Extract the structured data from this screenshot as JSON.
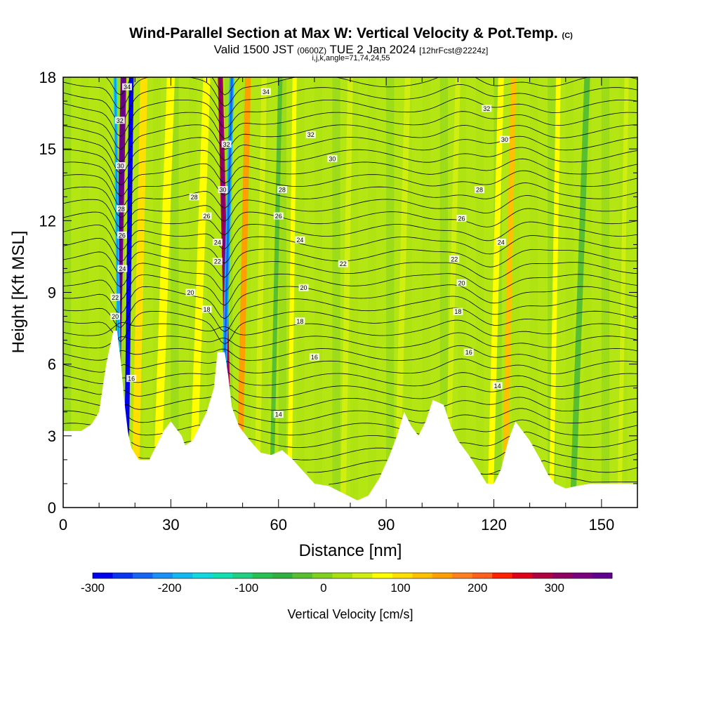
{
  "header": {
    "title_main": "Wind-Parallel Section at Max W: Vertical Velocity & Pot.Temp.",
    "title_copyright": "(C)",
    "valid_prefix": "Valid 1500 JST",
    "valid_utc": "(0600Z)",
    "valid_date": "TUE 2 Jan 2024",
    "forecast_info": "[12hrFcst@2224z]",
    "indices": "i,j,k,angle=71,74,24,55"
  },
  "chart_data": {
    "type": "heatmap",
    "description_type": "cross-section with filled contours and isentropes",
    "xlabel": "Distance [nm]",
    "ylabel": "Height [Kft MSL]",
    "xlim": [
      0,
      160
    ],
    "ylim": [
      0,
      18
    ],
    "x_ticks": [
      0,
      30,
      60,
      90,
      120,
      150
    ],
    "y_ticks": [
      0,
      3,
      6,
      9,
      12,
      15,
      18
    ],
    "colorbar": {
      "label": "Vertical Velocity [cm/s]",
      "range": [
        -300,
        375
      ],
      "step": 25,
      "tick_values": [
        -300,
        -200,
        -100,
        0,
        100,
        200,
        300
      ],
      "colors": [
        "#0000ee",
        "#0a35f0",
        "#1565f2",
        "#1a90f5",
        "#14b8f0",
        "#10d8e0",
        "#10e0b0",
        "#20d080",
        "#28c050",
        "#30b040",
        "#58c030",
        "#80d020",
        "#a8e010",
        "#d0ee10",
        "#ffff00",
        "#ffe000",
        "#ffc000",
        "#ffa000",
        "#ff8020",
        "#ff6020",
        "#ff2000",
        "#e00018",
        "#b00040",
        "#900060",
        "#7a0080",
        "#60008c"
      ]
    },
    "terrain_kft": [
      {
        "x": 0,
        "h": 3.2
      },
      {
        "x": 5,
        "h": 3.2
      },
      {
        "x": 8,
        "h": 3.5
      },
      {
        "x": 10,
        "h": 4.0
      },
      {
        "x": 12,
        "h": 6.0
      },
      {
        "x": 14,
        "h": 7.4
      },
      {
        "x": 15,
        "h": 7.4
      },
      {
        "x": 16,
        "h": 6.2
      },
      {
        "x": 17,
        "h": 4.5
      },
      {
        "x": 18,
        "h": 3.2
      },
      {
        "x": 19,
        "h": 2.5
      },
      {
        "x": 21,
        "h": 2.0
      },
      {
        "x": 24,
        "h": 2.0
      },
      {
        "x": 26,
        "h": 2.6
      },
      {
        "x": 28,
        "h": 3.2
      },
      {
        "x": 30,
        "h": 3.6
      },
      {
        "x": 33,
        "h": 3.0
      },
      {
        "x": 34,
        "h": 2.6
      },
      {
        "x": 36,
        "h": 2.8
      },
      {
        "x": 38,
        "h": 3.4
      },
      {
        "x": 40,
        "h": 4.0
      },
      {
        "x": 42,
        "h": 5.0
      },
      {
        "x": 43,
        "h": 6.5
      },
      {
        "x": 45,
        "h": 6.5
      },
      {
        "x": 46,
        "h": 5.5
      },
      {
        "x": 47,
        "h": 4.2
      },
      {
        "x": 49,
        "h": 3.4
      },
      {
        "x": 52,
        "h": 2.8
      },
      {
        "x": 55,
        "h": 2.3
      },
      {
        "x": 58,
        "h": 2.2
      },
      {
        "x": 61,
        "h": 2.4
      },
      {
        "x": 64,
        "h": 2.0
      },
      {
        "x": 67,
        "h": 1.5
      },
      {
        "x": 70,
        "h": 1.0
      },
      {
        "x": 74,
        "h": 0.9
      },
      {
        "x": 78,
        "h": 0.6
      },
      {
        "x": 82,
        "h": 0.3
      },
      {
        "x": 85,
        "h": 0.5
      },
      {
        "x": 88,
        "h": 1.2
      },
      {
        "x": 91,
        "h": 2.2
      },
      {
        "x": 93,
        "h": 3.0
      },
      {
        "x": 95,
        "h": 4.0
      },
      {
        "x": 97,
        "h": 3.4
      },
      {
        "x": 99,
        "h": 3.0
      },
      {
        "x": 101,
        "h": 3.6
      },
      {
        "x": 103,
        "h": 4.5
      },
      {
        "x": 106,
        "h": 4.3
      },
      {
        "x": 108,
        "h": 3.4
      },
      {
        "x": 110,
        "h": 2.8
      },
      {
        "x": 113,
        "h": 2.2
      },
      {
        "x": 116,
        "h": 1.5
      },
      {
        "x": 118,
        "h": 1.0
      },
      {
        "x": 120,
        "h": 1.0
      },
      {
        "x": 122,
        "h": 1.6
      },
      {
        "x": 124,
        "h": 2.8
      },
      {
        "x": 126,
        "h": 3.6
      },
      {
        "x": 128,
        "h": 3.2
      },
      {
        "x": 130,
        "h": 2.8
      },
      {
        "x": 133,
        "h": 2.0
      },
      {
        "x": 135,
        "h": 1.4
      },
      {
        "x": 137,
        "h": 1.0
      },
      {
        "x": 140,
        "h": 0.8
      },
      {
        "x": 143,
        "h": 0.9
      },
      {
        "x": 147,
        "h": 1.0
      },
      {
        "x": 150,
        "h": 1.0
      },
      {
        "x": 155,
        "h": 1.0
      },
      {
        "x": 160,
        "h": 1.0
      }
    ],
    "velocity_bands": [
      {
        "x_bottom": 14.5,
        "x_top": 16.8,
        "width": 1.6,
        "value": 300
      },
      {
        "x_bottom": 17.5,
        "x_top": 19.0,
        "width": 1.3,
        "value": -300
      },
      {
        "x_bottom": 16.0,
        "x_top": 14.5,
        "width": 1.0,
        "value": -175
      },
      {
        "x_bottom": 20.0,
        "x_top": 22.5,
        "width": 2.0,
        "value": 75
      },
      {
        "x_bottom": 26.0,
        "x_top": 30.0,
        "width": 2.2,
        "value": 50
      },
      {
        "x_bottom": 36.0,
        "x_top": 40.0,
        "width": 2.0,
        "value": 50
      },
      {
        "x_bottom": 46.5,
        "x_top": 43.8,
        "width": 1.4,
        "value": 250
      },
      {
        "x_bottom": 44.0,
        "x_top": 47.0,
        "width": 1.3,
        "value": -200
      },
      {
        "x_bottom": 49.0,
        "x_top": 51.5,
        "width": 1.6,
        "value": 125
      },
      {
        "x_bottom": 54.0,
        "x_top": 56.0,
        "width": 1.5,
        "value": 25
      },
      {
        "x_bottom": 58.0,
        "x_top": 60.5,
        "width": 1.2,
        "value": -50
      },
      {
        "x_bottom": 63.0,
        "x_top": 64.5,
        "width": 1.2,
        "value": 50
      },
      {
        "x_bottom": 78.0,
        "x_top": 80.0,
        "width": 1.5,
        "value": 25
      },
      {
        "x_bottom": 93.0,
        "x_top": 96.0,
        "width": 1.6,
        "value": 25
      },
      {
        "x_bottom": 107.0,
        "x_top": 110.0,
        "width": 1.4,
        "value": 25
      },
      {
        "x_bottom": 119.0,
        "x_top": 122.0,
        "width": 1.6,
        "value": 50
      },
      {
        "x_bottom": 123.0,
        "x_top": 125.5,
        "width": 1.5,
        "value": 100
      },
      {
        "x_bottom": 136.0,
        "x_top": 138.0,
        "width": 1.3,
        "value": 50
      },
      {
        "x_bottom": 142.0,
        "x_top": 146.0,
        "width": 1.6,
        "value": -50
      },
      {
        "x_bottom": 155.0,
        "x_top": 157.0,
        "width": 1.2,
        "value": 25
      }
    ],
    "isentrope_labels": [
      {
        "text": "34",
        "x": 17.8,
        "y": 17.6
      },
      {
        "text": "32",
        "x": 15.8,
        "y": 16.2
      },
      {
        "text": "30",
        "x": 16.0,
        "y": 14.3
      },
      {
        "text": "28",
        "x": 16.2,
        "y": 12.5
      },
      {
        "text": "26",
        "x": 16.4,
        "y": 11.4
      },
      {
        "text": "24",
        "x": 16.5,
        "y": 10.0
      },
      {
        "text": "22",
        "x": 14.5,
        "y": 8.8
      },
      {
        "text": "20",
        "x": 14.5,
        "y": 8.0
      },
      {
        "text": "16",
        "x": 19.0,
        "y": 5.4
      },
      {
        "text": "28",
        "x": 36.5,
        "y": 13.0
      },
      {
        "text": "26",
        "x": 40.0,
        "y": 12.2
      },
      {
        "text": "20",
        "x": 35.5,
        "y": 9.0
      },
      {
        "text": "18",
        "x": 40.0,
        "y": 8.3
      },
      {
        "text": "34",
        "x": 56.5,
        "y": 17.4
      },
      {
        "text": "32",
        "x": 45.5,
        "y": 15.2
      },
      {
        "text": "30",
        "x": 44.5,
        "y": 13.3
      },
      {
        "text": "24",
        "x": 43.0,
        "y": 11.1
      },
      {
        "text": "22",
        "x": 43.0,
        "y": 10.3
      },
      {
        "text": "28",
        "x": 61.0,
        "y": 13.3
      },
      {
        "text": "26",
        "x": 60.0,
        "y": 12.2
      },
      {
        "text": "24",
        "x": 66.0,
        "y": 11.2
      },
      {
        "text": "20",
        "x": 67.0,
        "y": 9.2
      },
      {
        "text": "18",
        "x": 66.0,
        "y": 7.8
      },
      {
        "text": "16",
        "x": 70.0,
        "y": 6.3
      },
      {
        "text": "14",
        "x": 60.0,
        "y": 3.9
      },
      {
        "text": "32",
        "x": 69.0,
        "y": 15.6
      },
      {
        "text": "30",
        "x": 75.0,
        "y": 14.6
      },
      {
        "text": "22",
        "x": 78.0,
        "y": 10.2
      },
      {
        "text": "32",
        "x": 118.0,
        "y": 16.7
      },
      {
        "text": "30",
        "x": 123.0,
        "y": 15.4
      },
      {
        "text": "28",
        "x": 116.0,
        "y": 13.3
      },
      {
        "text": "26",
        "x": 111.0,
        "y": 12.1
      },
      {
        "text": "24",
        "x": 122.0,
        "y": 11.1
      },
      {
        "text": "22",
        "x": 109.0,
        "y": 10.4
      },
      {
        "text": "20",
        "x": 111.0,
        "y": 9.4
      },
      {
        "text": "18",
        "x": 110.0,
        "y": 8.2
      },
      {
        "text": "16",
        "x": 113.0,
        "y": 6.5
      },
      {
        "text": "14",
        "x": 121.0,
        "y": 5.1
      }
    ]
  }
}
